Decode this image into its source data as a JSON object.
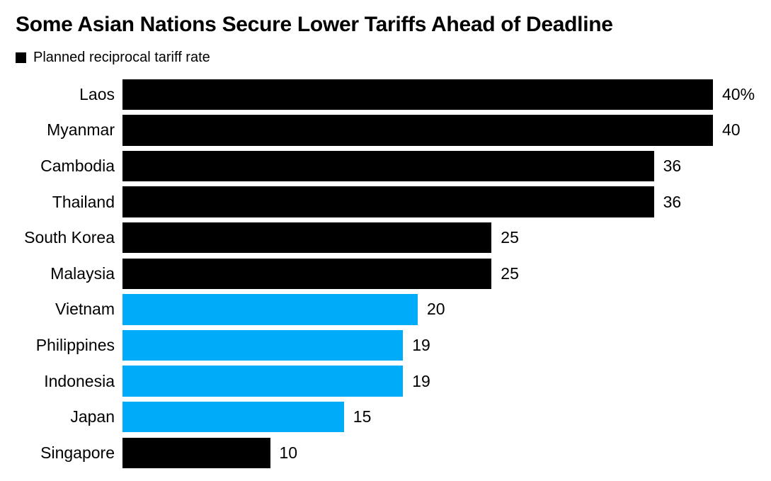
{
  "header": {
    "title": "Some Asian Nations Secure Lower Tariffs Ahead of Deadline"
  },
  "legend": {
    "label": "Planned reciprocal tariff rate",
    "swatch_color": "#000000"
  },
  "colors": {
    "black": "#000000",
    "blue": "#00acfa"
  },
  "chart_data": {
    "type": "bar",
    "orientation": "horizontal",
    "title": "Some Asian Nations Secure Lower Tariffs Ahead of Deadline",
    "legend_entries": [
      "Planned reciprocal tariff rate"
    ],
    "categories": [
      "Laos",
      "Myanmar",
      "Cambodia",
      "Thailand",
      "South Korea",
      "Malaysia",
      "Vietnam",
      "Philippines",
      "Indonesia",
      "Japan",
      "Singapore"
    ],
    "values": [
      40,
      40,
      36,
      36,
      25,
      25,
      20,
      19,
      19,
      15,
      10
    ],
    "value_labels": [
      "40%",
      "40",
      "36",
      "36",
      "25",
      "25",
      "20",
      "19",
      "19",
      "15",
      "10"
    ],
    "bar_colors": [
      "black",
      "black",
      "black",
      "black",
      "black",
      "black",
      "blue",
      "blue",
      "blue",
      "blue",
      "black"
    ],
    "unit": "%",
    "xlim": [
      0,
      40
    ],
    "grid": false,
    "value_label_position": "right-of-bar"
  }
}
